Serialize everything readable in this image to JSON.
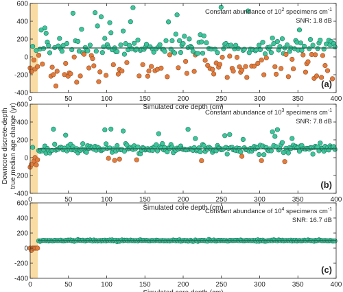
{
  "figure": {
    "shared_ylabel_line1": "Downcore discrete-depth",
    "shared_ylabel_line2": "true median age change (yr)",
    "xlabel": "Simulated core depth (cm)",
    "colors": {
      "highlight_band": "#f9dca3",
      "positive_points": "#3fc49b",
      "negative_points": "#e07c3e",
      "point_edge": "#1a7a5c",
      "neg_edge": "#9a4e1f",
      "median_line": "#1f5c48"
    }
  },
  "chart_data": [
    {
      "type": "scatter",
      "panel_label": "(a)",
      "annotation_prefix": "Constant abundance of 10",
      "annotation_exp": "2",
      "annotation_suffix": " specimens cm",
      "annotation_unit_exp": "-1",
      "snr_text": "SNR: 1.8 dB",
      "xlim": [
        0,
        400
      ],
      "ylim": [
        -400,
        600
      ],
      "xticks": [
        0,
        50,
        100,
        150,
        200,
        250,
        300,
        350,
        400
      ],
      "yticks": [
        -400,
        -200,
        0,
        200,
        400,
        600
      ],
      "highlight_x": [
        0,
        10
      ],
      "median_line_y": 100,
      "grid": false,
      "seed": 11,
      "spread": 120,
      "outlier_neg_rate": 0.28,
      "neg_center": -150,
      "neg_spread": 70,
      "pos_tail": 400,
      "pos_tail_rate": 0.15
    },
    {
      "type": "scatter",
      "panel_label": "(b)",
      "annotation_prefix": "Constant abundance of 10",
      "annotation_exp": "3",
      "annotation_suffix": " specimens cm",
      "annotation_unit_exp": "-1",
      "snr_text": "SNR: 7.8 dB",
      "xlim": [
        0,
        400
      ],
      "ylim": [
        -400,
        600
      ],
      "xticks": [
        0,
        50,
        100,
        150,
        200,
        250,
        300,
        350,
        400
      ],
      "yticks": [
        -400,
        -200,
        0,
        200,
        400,
        600
      ],
      "highlight_x": [
        0,
        10
      ],
      "median_line_y": 100,
      "grid": false,
      "seed": 23,
      "spread": 45,
      "outlier_neg_rate": 0.03,
      "neg_center": -20,
      "neg_spread": 30,
      "pos_tail": 150,
      "pos_tail_rate": 0.04
    },
    {
      "type": "scatter",
      "panel_label": "(c)",
      "annotation_prefix": "Constant abundance of 10",
      "annotation_exp": "4",
      "annotation_suffix": " specimens cm",
      "annotation_unit_exp": "-1",
      "snr_text": "SNR: 16.7 dB",
      "xlim": [
        0,
        400
      ],
      "ylim": [
        -400,
        600
      ],
      "xticks": [
        0,
        50,
        100,
        150,
        200,
        250,
        300,
        350,
        400
      ],
      "yticks": [
        -400,
        -200,
        0,
        200,
        400,
        600
      ],
      "highlight_x": [
        0,
        10
      ],
      "median_line_y": 100,
      "grid": false,
      "seed": 37,
      "spread": 10,
      "outlier_neg_rate": 0.0,
      "neg_center": 0,
      "neg_spread": 0,
      "pos_tail": 0,
      "pos_tail_rate": 0.0
    }
  ]
}
